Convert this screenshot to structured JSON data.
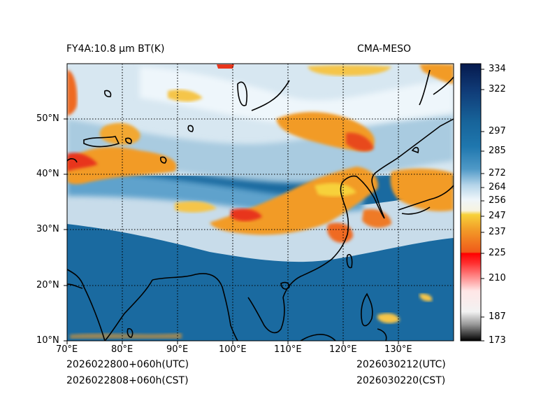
{
  "header": {
    "left_title": "FY4A:10.8 µm BT(K)",
    "right_title": "CMA-MESO"
  },
  "footer": {
    "init_utc": "2026022800+060h(UTC)",
    "init_cst": "2026022808+060h(CST)",
    "valid_utc": "2026030212(UTC)",
    "valid_cst": "2026030220(CST)"
  },
  "map": {
    "lon_ticks": [
      "70°E",
      "80°E",
      "90°E",
      "100°E",
      "110°E",
      "120°E",
      "130°E"
    ],
    "lat_ticks": [
      "50°N",
      "40°N",
      "30°N",
      "20°N",
      "10°N"
    ],
    "lon_range": [
      70,
      140
    ],
    "lat_range": [
      10,
      60
    ]
  },
  "colorbar": {
    "ticks": [
      "334",
      "322",
      "297",
      "285",
      "272",
      "264",
      "256",
      "247",
      "237",
      "225",
      "210",
      "187",
      "173"
    ],
    "colors": {
      "navy": "#0b1e5a",
      "blue": "#1a6aa0",
      "light_blue": "#cfe3ef",
      "white": "#ffffff",
      "yellow": "#f3c23a",
      "orange": "#f08a1e",
      "red": "#ff1a1a",
      "pink": "#f7c9c9",
      "grey": "#8a8a8a",
      "black": "#000000"
    }
  }
}
